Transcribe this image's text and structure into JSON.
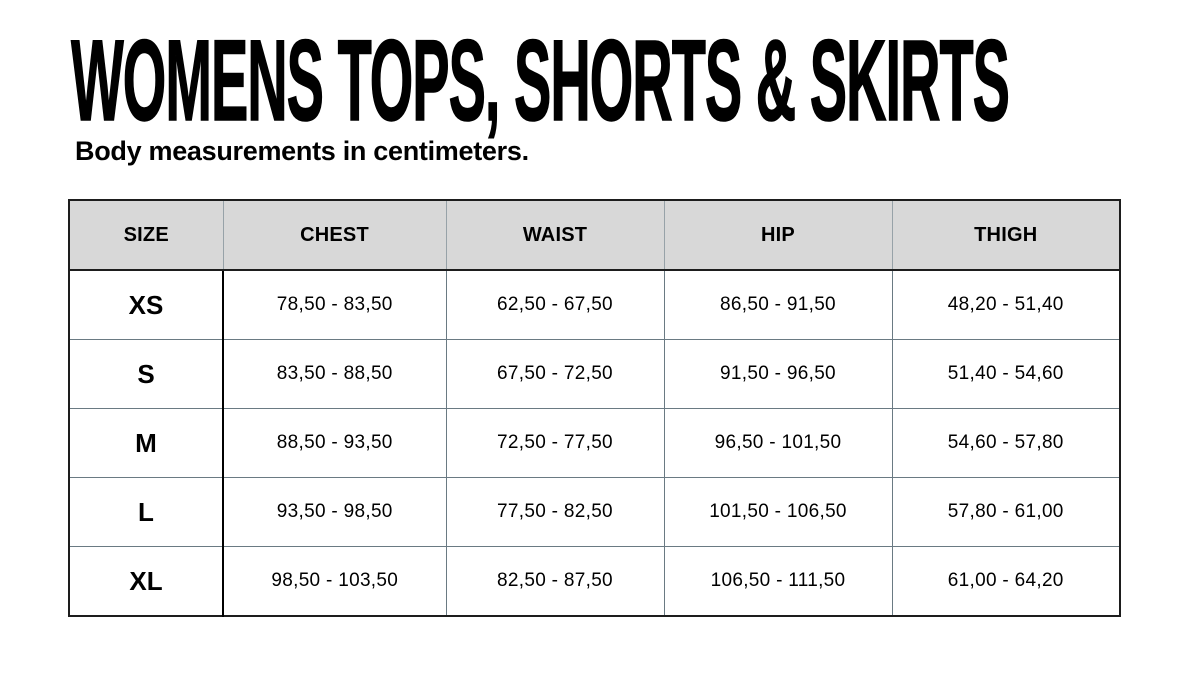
{
  "page": {
    "title": "WOMENS TOPS, SHORTS & SKIRTS",
    "subtitle": "Body measurements in centimeters."
  },
  "table": {
    "columns": [
      "SIZE",
      "CHEST",
      "WAIST",
      "HIP",
      "THIGH"
    ],
    "rows": [
      {
        "size": "XS",
        "values": [
          "78,50 - 83,50",
          "62,50 - 67,50",
          "86,50 - 91,50",
          "48,20 - 51,40"
        ]
      },
      {
        "size": "S",
        "values": [
          "83,50 - 88,50",
          "67,50 - 72,50",
          "91,50 - 96,50",
          "51,40 - 54,60"
        ]
      },
      {
        "size": "M",
        "values": [
          "88,50 - 93,50",
          "72,50 - 77,50",
          "96,50 - 101,50",
          "54,60 - 57,80"
        ]
      },
      {
        "size": "L",
        "values": [
          "93,50 - 98,50",
          "77,50 - 82,50",
          "101,50 - 106,50",
          "57,80 - 61,00"
        ]
      },
      {
        "size": "XL",
        "values": [
          "98,50 - 103,50",
          "82,50 - 87,50",
          "106,50 - 111,50",
          "61,00 - 64,20"
        ]
      }
    ]
  },
  "colors": {
    "background": "#ffffff",
    "text": "#000000",
    "header_background": "#d8d8d8",
    "outer_border": "#1d1d1d",
    "grid_line": "#6a7a83",
    "size_column_divider": "#000000"
  }
}
